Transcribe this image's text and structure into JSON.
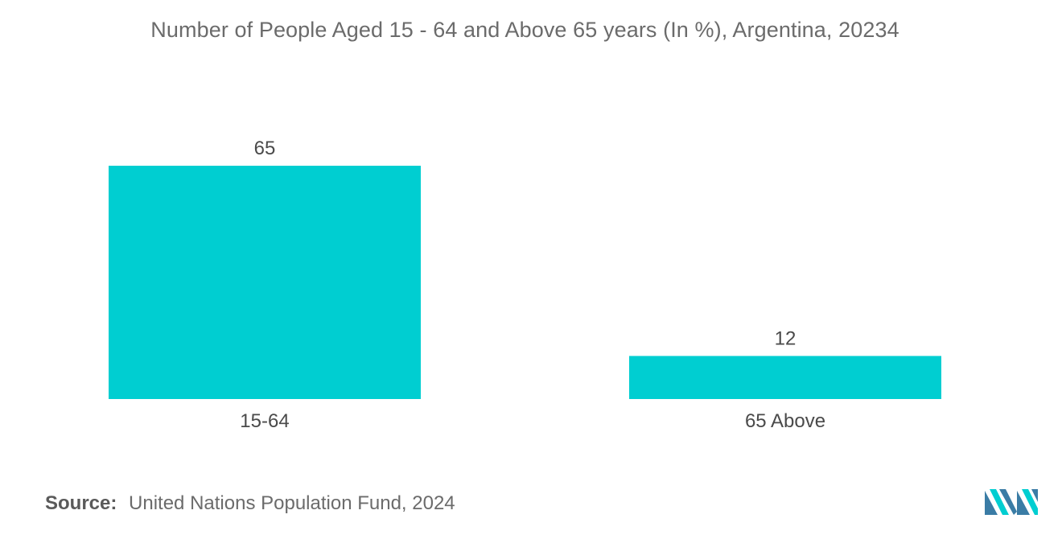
{
  "chart_data": {
    "type": "bar",
    "title": "Number of People Aged 15 - 64 and Above 65 years (In %), Argentina, 20234",
    "categories": [
      "15-64",
      "65 Above"
    ],
    "values": [
      65,
      12
    ],
    "value_labels": [
      "65",
      "12"
    ],
    "xlabel": "",
    "ylabel": "",
    "ylim": [
      0,
      65
    ],
    "grid": false,
    "legend": "none",
    "bar_color": "#00CED1"
  },
  "source": {
    "label": "Source:",
    "text": "United Nations Population Fund, 2024"
  },
  "logo": {
    "icon": "mordor-intelligence-logo-icon",
    "colors": [
      "#3a7ca5",
      "#00CED1"
    ]
  }
}
